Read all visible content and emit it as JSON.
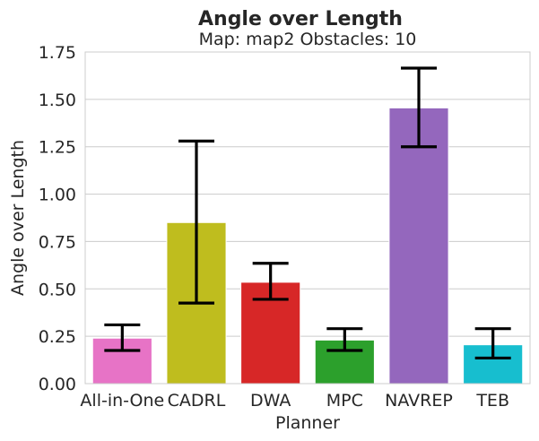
{
  "chart_data": {
    "type": "bar",
    "title": "Angle over Length",
    "subtitle": "Map: map2 Obstacles: 10",
    "xlabel": "Planner",
    "ylabel": "Angle over Length",
    "ylim": [
      0,
      1.75
    ],
    "yticks": [
      "0.00",
      "0.25",
      "0.50",
      "0.75",
      "1.00",
      "1.25",
      "1.50",
      "1.75"
    ],
    "grid": "horizontal",
    "categories": [
      "All-in-One",
      "CADRL",
      "DWA",
      "MPC",
      "NAVREP",
      "TEB"
    ],
    "values": [
      0.24,
      0.85,
      0.535,
      0.23,
      1.455,
      0.205
    ],
    "error_low": [
      0.175,
      0.425,
      0.445,
      0.175,
      1.25,
      0.135
    ],
    "error_high": [
      0.31,
      1.28,
      0.635,
      0.29,
      1.665,
      0.29
    ],
    "colors": [
      "#e773c6",
      "#bfbd1e",
      "#d72727",
      "#2ca02c",
      "#9467bd",
      "#17becf"
    ]
  }
}
